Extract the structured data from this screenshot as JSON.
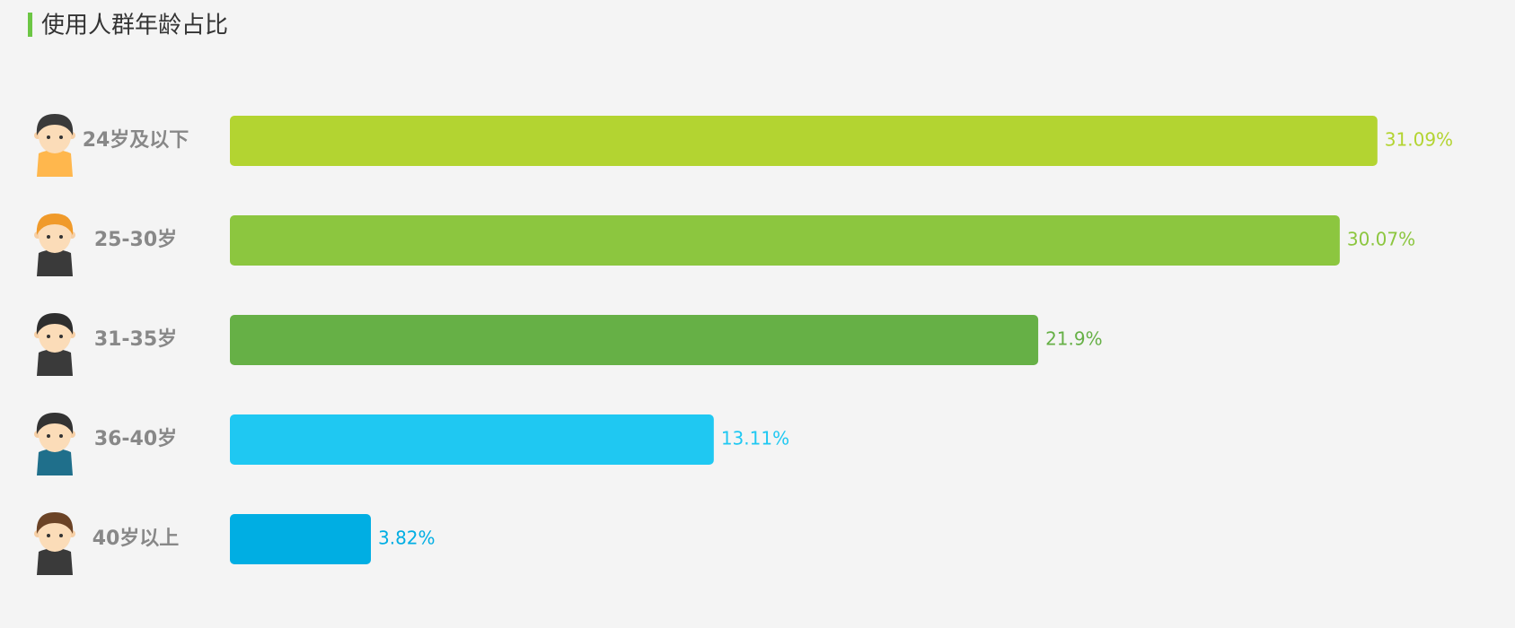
{
  "chart_data": {
    "type": "bar",
    "orientation": "horizontal",
    "title": "使用人群年龄占比",
    "categories": [
      "24岁及以下",
      "25-30岁",
      "31-35岁",
      "36-40岁",
      "40岁以上"
    ],
    "values": [
      31.09,
      30.07,
      21.9,
      13.11,
      3.82
    ],
    "value_labels": [
      "31.09%",
      "30.07%",
      "21.9%",
      "13.11%",
      "3.82%"
    ],
    "colors": [
      "#b3d431",
      "#8cc63f",
      "#66b046",
      "#1fc8f2",
      "#00aee3"
    ]
  }
}
